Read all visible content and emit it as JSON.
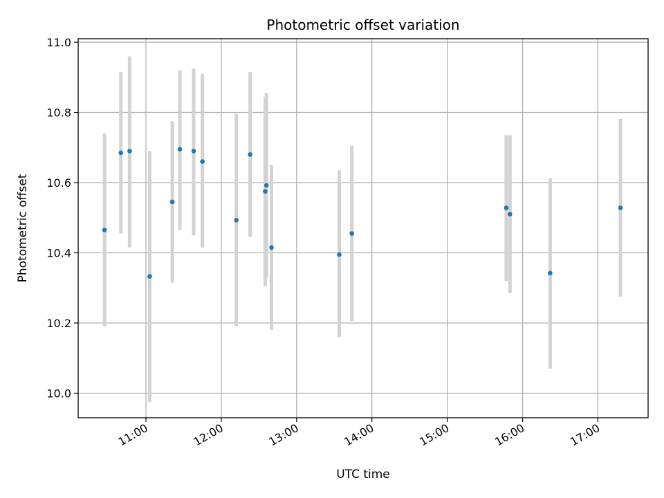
{
  "chart_data": {
    "type": "scatter",
    "title": "Photometric offset variation",
    "xlabel": "UTC time",
    "ylabel": "Photometric offset",
    "x_unit": "time",
    "xlim": [
      "10:06",
      "17:40"
    ],
    "ylim": [
      9.93,
      11.01
    ],
    "x_ticks": [
      "11:00",
      "12:00",
      "13:00",
      "14:00",
      "15:00",
      "16:00",
      "17:00"
    ],
    "y_ticks": [
      "10.0",
      "10.2",
      "10.4",
      "10.6",
      "10.8",
      "11.0"
    ],
    "grid": true,
    "marker_color": "#1f77b4",
    "errorbar_color": "#d3d3d3",
    "points": [
      {
        "x": "10:27",
        "y": 10.465,
        "ymin": 10.19,
        "ymax": 10.74
      },
      {
        "x": "10:40",
        "y": 10.685,
        "ymin": 10.455,
        "ymax": 10.915
      },
      {
        "x": "10:47",
        "y": 10.69,
        "ymin": 10.415,
        "ymax": 10.96
      },
      {
        "x": "11:03",
        "y": 10.333,
        "ymin": 9.975,
        "ymax": 10.69
      },
      {
        "x": "11:21",
        "y": 10.545,
        "ymin": 10.315,
        "ymax": 10.775
      },
      {
        "x": "11:27",
        "y": 10.695,
        "ymin": 10.465,
        "ymax": 10.92
      },
      {
        "x": "11:38",
        "y": 10.69,
        "ymin": 10.45,
        "ymax": 10.925
      },
      {
        "x": "11:45",
        "y": 10.66,
        "ymin": 10.415,
        "ymax": 10.91
      },
      {
        "x": "12:12",
        "y": 10.493,
        "ymin": 10.19,
        "ymax": 10.795
      },
      {
        "x": "12:23",
        "y": 10.68,
        "ymin": 10.445,
        "ymax": 10.915
      },
      {
        "x": "12:35",
        "y": 10.575,
        "ymin": 10.305,
        "ymax": 10.845
      },
      {
        "x": "12:36",
        "y": 10.592,
        "ymin": 10.33,
        "ymax": 10.855
      },
      {
        "x": "12:40",
        "y": 10.415,
        "ymin": 10.18,
        "ymax": 10.65
      },
      {
        "x": "13:34",
        "y": 10.395,
        "ymin": 10.16,
        "ymax": 10.635
      },
      {
        "x": "13:44",
        "y": 10.455,
        "ymin": 10.205,
        "ymax": 10.705
      },
      {
        "x": "15:47",
        "y": 10.528,
        "ymin": 10.32,
        "ymax": 10.735
      },
      {
        "x": "15:50",
        "y": 10.51,
        "ymin": 10.285,
        "ymax": 10.735
      },
      {
        "x": "16:22",
        "y": 10.342,
        "ymin": 10.07,
        "ymax": 10.612
      },
      {
        "x": "17:18",
        "y": 10.528,
        "ymin": 10.275,
        "ymax": 10.782
      }
    ]
  }
}
